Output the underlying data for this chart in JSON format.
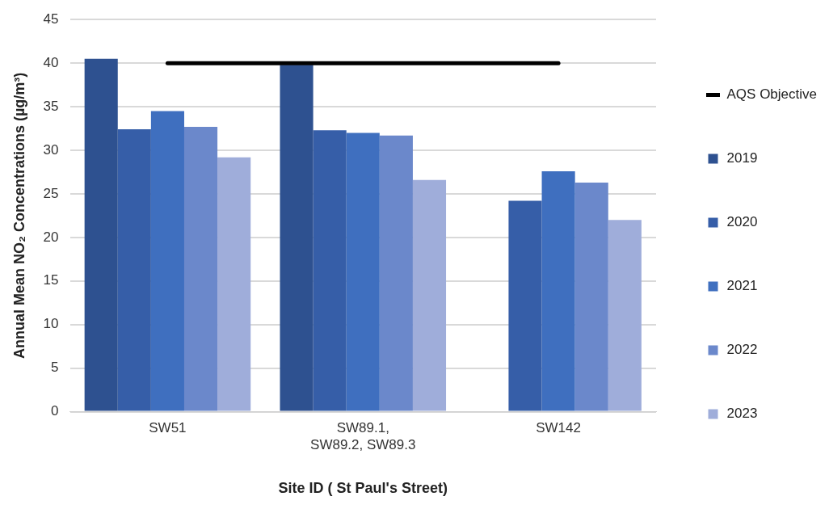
{
  "chart_data": {
    "type": "bar",
    "categories": [
      "SW51",
      "SW89.1, SW89.2, SW89.3",
      "SW142"
    ],
    "xlabel": "Site ID ( St Paul's Street)",
    "ylabel": "Annual Mean NO₂ Concentrations (µg/m³)",
    "ylim": [
      0,
      45
    ],
    "yticks": [
      0,
      5,
      10,
      15,
      20,
      25,
      30,
      35,
      40,
      45
    ],
    "grid": "y",
    "legend": "right",
    "series": [
      {
        "name": "2019",
        "color": "#2e5190",
        "values": [
          40.5,
          39.8,
          null
        ]
      },
      {
        "name": "2020",
        "color": "#365ea8",
        "values": [
          32.4,
          32.3,
          24.2
        ]
      },
      {
        "name": "2021",
        "color": "#3f6fbf",
        "values": [
          34.5,
          32.0,
          27.6
        ]
      },
      {
        "name": "2022",
        "color": "#6b88cb",
        "values": [
          32.7,
          31.7,
          26.3
        ]
      },
      {
        "name": "2023",
        "color": "#9fadda",
        "values": [
          29.2,
          26.6,
          22.0
        ]
      },
      {
        "name": "AQS Objective",
        "type": "line",
        "color": "#000000",
        "values": [
          40,
          40,
          40
        ],
        "marker": "none"
      }
    ]
  }
}
